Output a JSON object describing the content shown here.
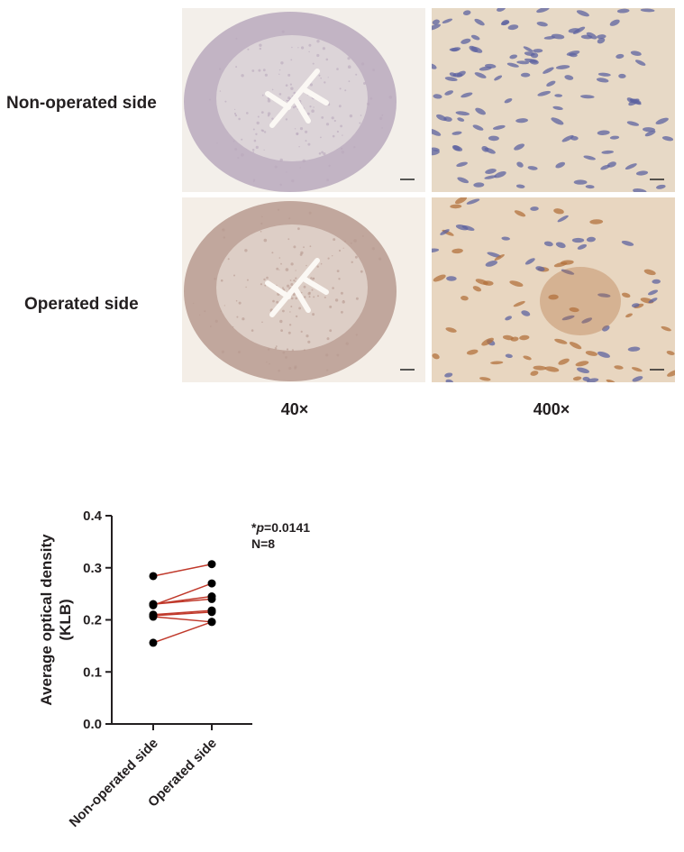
{
  "figure": {
    "row_labels": [
      "Non-operated side",
      "Operated side"
    ],
    "col_labels": [
      "40×",
      "400×"
    ],
    "micrographs": [
      {
        "row": "Non-operated side",
        "magnification": "40×",
        "stain_tone": "#b9a9bd",
        "background": "#f3efea"
      },
      {
        "row": "Non-operated side",
        "magnification": "400×",
        "stain_tone": "#5d63a0",
        "background": "#e7d9c6"
      },
      {
        "row": "Operated side",
        "magnification": "40×",
        "stain_tone": "#b79a8f",
        "background": "#f4eee7"
      },
      {
        "row": "Operated side",
        "magnification": "400×",
        "stain_tone": "#b3713d",
        "background": "#e8d6c0"
      }
    ]
  },
  "chart_data": {
    "type": "scatter",
    "subtype": "paired-before-after",
    "title": "",
    "xlabel": "",
    "ylabel": "Average optical density",
    "ylabel2": "(KLB)",
    "categories": [
      "Non-operated side",
      "Operated side"
    ],
    "ylim": [
      0,
      0.4
    ],
    "yticks": [
      0.0,
      0.1,
      0.2,
      0.3,
      0.4
    ],
    "ytick_labels": [
      "0.0",
      "0.1",
      "0.2",
      "0.3",
      "0.4"
    ],
    "pairs": [
      [
        0.284,
        0.307
      ],
      [
        0.23,
        0.245
      ],
      [
        0.23,
        0.24
      ],
      [
        0.228,
        0.27
      ],
      [
        0.21,
        0.218
      ],
      [
        0.208,
        0.215
      ],
      [
        0.206,
        0.196
      ],
      [
        0.156,
        0.196
      ]
    ],
    "annotations": {
      "p_prefix": "*",
      "p_symbol": "p",
      "p_value": "=0.0141",
      "n": "N=8"
    },
    "point_color": "#000000",
    "line_color": "#c0392b",
    "grid": false
  }
}
